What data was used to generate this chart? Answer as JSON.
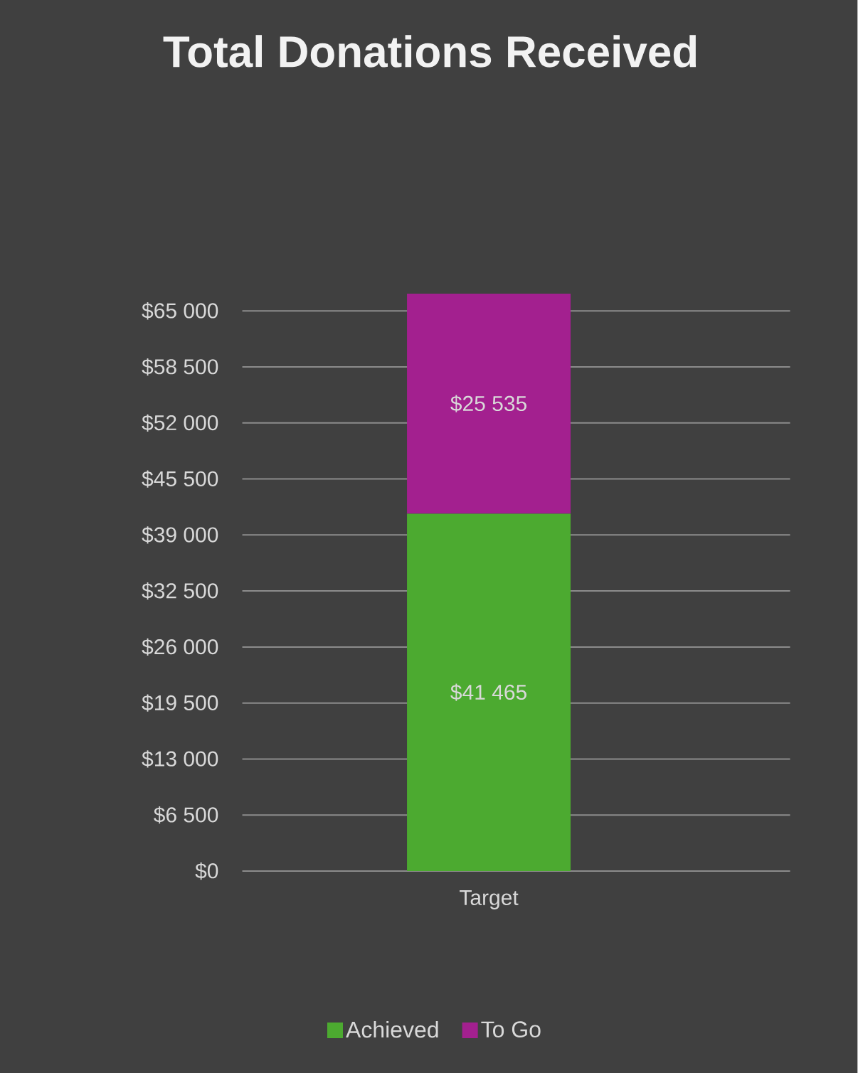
{
  "chart_data": {
    "type": "bar",
    "title": "Total Donations Received",
    "categories": [
      "Target"
    ],
    "stacked": true,
    "series": [
      {
        "name": "Achieved",
        "color": "#4caa30",
        "values": [
          41465
        ],
        "value_labels": [
          "$41 465"
        ]
      },
      {
        "name": "To Go",
        "color": "#a3208f",
        "values": [
          25535
        ],
        "value_labels": [
          "$25 535"
        ]
      }
    ],
    "ylim": [
      0,
      67000
    ],
    "yticks": [
      {
        "value": 0,
        "label": "$0"
      },
      {
        "value": 6500,
        "label": "$6 500"
      },
      {
        "value": 13000,
        "label": "$13 000"
      },
      {
        "value": 19500,
        "label": "$19 500"
      },
      {
        "value": 26000,
        "label": "$26 000"
      },
      {
        "value": 32500,
        "label": "$32 500"
      },
      {
        "value": 39000,
        "label": "$39 000"
      },
      {
        "value": 45500,
        "label": "$45 500"
      },
      {
        "value": 52000,
        "label": "$52 000"
      },
      {
        "value": 58500,
        "label": "$58 500"
      },
      {
        "value": 65000,
        "label": "$65 000"
      }
    ],
    "grid": "y",
    "legend": "bottom"
  }
}
